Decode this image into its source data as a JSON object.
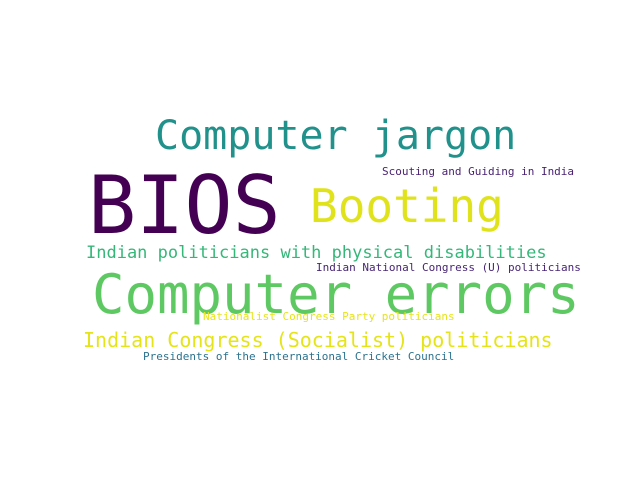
{
  "words": [
    {
      "text": "BIOS",
      "color": "#440154"
    },
    {
      "text": "Computer jargon",
      "color": "#21918c"
    },
    {
      "text": "Booting",
      "color": "#e0e31c"
    },
    {
      "text": "Scouting and Guiding in India",
      "color": "#481f70"
    },
    {
      "text": "Indian politicians with physical disabilities",
      "color": "#35b779"
    },
    {
      "text": "Indian National Congress (U) politicians",
      "color": "#482575"
    },
    {
      "text": "Computer errors",
      "color": "#5ec962"
    },
    {
      "text": "Nationalist Congress Party politicians",
      "color": "#e7e419"
    },
    {
      "text": "Indian Congress (Socialist) politicians",
      "color": "#e5e419"
    },
    {
      "text": "Presidents of the International Cricket Council",
      "color": "#2c728e"
    }
  ]
}
